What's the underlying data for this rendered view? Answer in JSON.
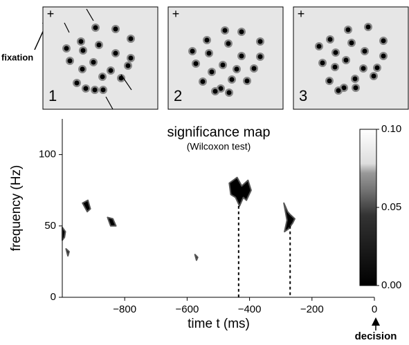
{
  "panels": [
    {
      "label": "1",
      "fixation_mark": "+"
    },
    {
      "label": "2",
      "fixation_mark": "+"
    },
    {
      "label": "3",
      "fixation_mark": "+"
    }
  ],
  "fixation_label": "fixation",
  "chart_data": {
    "type": "heatmap",
    "title": "significance map",
    "subtitle": "(Wilcoxon test)",
    "x_label": "time t (ms)",
    "y_label": "frequency (Hz)",
    "xlim": [
      -1000,
      0
    ],
    "ylim": [
      0,
      125
    ],
    "xticks": [
      {
        "value": -800,
        "label": "−800"
      },
      {
        "value": -600,
        "label": "−600"
      },
      {
        "value": -400,
        "label": "−400"
      },
      {
        "value": -200,
        "label": "−200"
      },
      0
    ],
    "yticks": [
      0,
      50,
      100
    ],
    "clim": [
      0,
      0.1
    ],
    "cticks": [
      {
        "value": 0,
        "label": "0.00"
      },
      {
        "value": 0.05,
        "label": "0.05"
      },
      {
        "value": 0.1,
        "label": "0.10"
      }
    ],
    "clusters": [
      {
        "x": [
          -465,
          -440,
          -425,
          -405,
          -395,
          -410,
          -420,
          -432,
          -445,
          -460
        ],
        "y": [
          80,
          84,
          78,
          82,
          75,
          68,
          70,
          64,
          70,
          72
        ]
      },
      {
        "x": [
          -290,
          -278,
          -270,
          -255,
          -262,
          -275,
          -288,
          -280
        ],
        "y": [
          66,
          60,
          58,
          55,
          52,
          48,
          46,
          54
        ]
      },
      {
        "x": [
          -935,
          -918,
          -910,
          -920
        ],
        "y": [
          66,
          68,
          62,
          60
        ]
      },
      {
        "x": [
          -855,
          -838,
          -828,
          -845
        ],
        "y": [
          56,
          55,
          50,
          50
        ]
      },
      {
        "x": [
          -1000,
          -990,
          -993,
          -1000
        ],
        "y": [
          49,
          46,
          42,
          40
        ]
      },
      {
        "x": [
          -988,
          -978,
          -982
        ],
        "y": [
          34,
          32,
          29
        ]
      },
      {
        "x": [
          -575,
          -566,
          -570
        ],
        "y": [
          30,
          28,
          26
        ]
      }
    ],
    "decision_lines": [
      -435,
      -270
    ],
    "decision_line_tops": [
      64,
      50
    ],
    "decision_label": "decision"
  }
}
